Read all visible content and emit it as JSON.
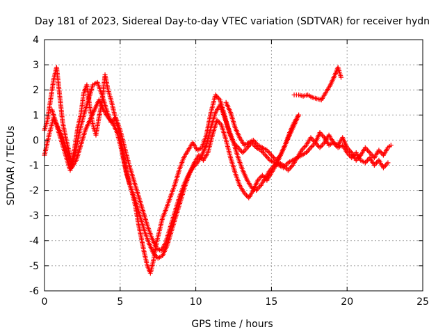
{
  "chart_data": {
    "type": "scatter",
    "title": "Day 181 of 2023, Sidereal Day-to-day VTEC variation (SDTVAR) for receiver hydn",
    "xlabel": "GPS time / hours",
    "ylabel": "SDTVAR / TECUs",
    "xlim": [
      0,
      25
    ],
    "ylim": [
      -6,
      4
    ],
    "x_ticks": [
      0,
      5,
      10,
      15,
      20,
      25
    ],
    "y_ticks": [
      -6,
      -5,
      -4,
      -3,
      -2,
      -1,
      0,
      1,
      2,
      3,
      4
    ],
    "grid": true,
    "marker": "plus",
    "color": "#ff0000",
    "series": [
      {
        "x": [
          0.0,
          0.2,
          0.4,
          0.6,
          0.8,
          1.0,
          1.2,
          1.4,
          1.6,
          1.8,
          2.0,
          2.2,
          2.4,
          2.6,
          2.8,
          3.0,
          3.2,
          3.4,
          3.6,
          3.8,
          4.0,
          4.2,
          4.4,
          4.6,
          4.8,
          5.0,
          5.2,
          5.4,
          5.6,
          5.8,
          6.0,
          6.2,
          6.4,
          6.6,
          6.8,
          7.0,
          7.2,
          7.4,
          7.6,
          7.8,
          8.0,
          8.3,
          8.6,
          8.9,
          9.2,
          9.5,
          9.8,
          10.1,
          10.4,
          10.7,
          11.0,
          11.3,
          11.6,
          11.9,
          12.2,
          12.5,
          12.8,
          13.1,
          13.4,
          13.7,
          14.0,
          14.3,
          14.6,
          14.9,
          15.2,
          15.5,
          15.8,
          16.1,
          16.4,
          16.7,
          17.0,
          17.3,
          17.6,
          17.9,
          18.2,
          18.5,
          18.8,
          19.1,
          19.4,
          19.7,
          20.0,
          20.3,
          20.6,
          20.9,
          21.2,
          21.5,
          21.8,
          22.1,
          22.4,
          22.7,
          22.9
        ],
        "y": [
          0.4,
          0.8,
          1.6,
          2.4,
          2.9,
          1.8,
          0.7,
          0.1,
          -0.4,
          -0.9,
          -0.3,
          0.5,
          1.0,
          1.9,
          2.2,
          1.3,
          0.6,
          0.2,
          0.9,
          1.5,
          2.6,
          2.0,
          1.6,
          1.1,
          0.6,
          0.2,
          -0.6,
          -1.2,
          -1.7,
          -2.1,
          -2.6,
          -3.3,
          -3.9,
          -4.5,
          -5.0,
          -5.3,
          -4.8,
          -4.1,
          -3.6,
          -3.1,
          -2.8,
          -2.3,
          -1.8,
          -1.2,
          -0.7,
          -0.4,
          -0.1,
          -0.4,
          -0.3,
          0.2,
          1.1,
          1.8,
          1.6,
          1.0,
          0.3,
          -0.1,
          -0.3,
          -0.5,
          -0.3,
          -0.1,
          -0.3,
          -0.4,
          -0.6,
          -0.8,
          -0.9,
          -1.0,
          -1.1,
          -0.9,
          -0.8,
          -0.7,
          -0.6,
          -0.5,
          -0.3,
          -0.1,
          0.3,
          0.1,
          -0.2,
          -0.1,
          -0.2,
          0.1,
          -0.3,
          -0.5,
          -0.8,
          -0.6,
          -0.3,
          -0.5,
          -0.7,
          -0.4,
          -0.6,
          -0.3,
          -0.2
        ]
      },
      {
        "x": [
          0.0,
          0.3,
          0.6,
          0.9,
          1.2,
          1.5,
          1.8,
          2.1,
          2.4,
          2.7,
          3.0,
          3.3,
          3.6,
          3.9,
          4.2,
          4.5,
          4.8,
          5.1,
          5.4,
          5.7,
          6.0,
          6.3,
          6.6,
          6.9,
          7.2,
          7.5,
          7.8,
          8.1,
          8.4,
          8.7,
          9.0,
          9.3,
          9.6,
          9.9,
          10.2,
          10.5,
          10.8,
          11.1,
          11.4,
          11.7,
          12.0,
          12.3,
          12.6,
          12.9,
          13.2,
          13.5,
          13.8,
          14.1,
          14.4,
          14.7,
          15.0,
          15.3,
          15.6,
          15.9,
          16.2,
          16.5,
          16.8
        ],
        "y": [
          -0.6,
          0.2,
          0.9,
          0.5,
          0.1,
          -0.5,
          -1.1,
          -0.8,
          -0.2,
          0.4,
          0.8,
          1.2,
          1.6,
          1.2,
          0.9,
          0.7,
          0.3,
          -0.4,
          -1.3,
          -1.9,
          -2.4,
          -3.0,
          -3.6,
          -4.1,
          -4.5,
          -4.7,
          -4.6,
          -4.2,
          -3.6,
          -3.0,
          -2.4,
          -1.8,
          -1.3,
          -0.9,
          -0.6,
          -0.8,
          -0.5,
          0.2,
          0.8,
          0.6,
          0.0,
          -0.7,
          -1.3,
          -1.8,
          -2.1,
          -2.3,
          -2.0,
          -1.6,
          -1.4,
          -1.6,
          -1.3,
          -1.0,
          -0.6,
          -0.2,
          0.3,
          0.7,
          1.0
        ]
      },
      {
        "x": [
          0.5,
          0.8,
          1.1,
          1.4,
          1.7,
          2.0,
          2.3,
          2.6,
          2.9,
          3.2,
          3.5,
          3.8,
          4.1,
          4.4,
          4.7,
          5.0,
          5.3,
          5.6,
          5.9,
          6.2,
          6.5,
          6.8,
          7.1,
          7.4,
          7.7,
          8.0,
          8.3,
          8.6,
          8.9,
          9.2,
          9.5,
          9.8,
          10.1,
          10.4,
          10.7,
          11.0,
          11.3,
          11.6,
          11.9,
          12.2,
          12.5,
          12.8,
          13.1,
          13.4,
          13.7,
          14.0,
          14.3,
          14.6,
          14.9,
          15.2,
          15.5,
          15.8,
          16.1,
          16.4,
          16.7,
          17.0,
          17.3,
          17.6,
          17.9,
          18.2,
          18.5,
          18.8,
          19.1,
          19.4,
          19.7,
          20.0,
          20.3,
          20.6,
          20.9,
          21.2,
          21.5,
          21.8,
          22.1,
          22.4,
          22.7
        ],
        "y": [
          1.2,
          0.6,
          0.0,
          -0.6,
          -1.2,
          -0.6,
          0.3,
          1.0,
          1.6,
          2.2,
          2.3,
          1.8,
          1.2,
          0.7,
          0.9,
          0.4,
          -0.3,
          -1.0,
          -1.6,
          -2.2,
          -2.8,
          -3.4,
          -3.9,
          -4.3,
          -4.4,
          -4.1,
          -3.5,
          -2.9,
          -2.3,
          -1.8,
          -1.4,
          -1.1,
          -0.9,
          -0.6,
          -0.2,
          0.5,
          1.1,
          1.4,
          0.9,
          0.4,
          -0.1,
          -0.7,
          -1.2,
          -1.6,
          -1.9,
          -2.0,
          -1.8,
          -1.5,
          -1.2,
          -1.0,
          -0.9,
          -1.0,
          -1.2,
          -1.0,
          -0.7,
          -0.4,
          -0.2,
          0.1,
          -0.1,
          -0.3,
          -0.1,
          0.2,
          -0.1,
          -0.3,
          -0.2,
          -0.5,
          -0.7,
          -0.5,
          -0.8,
          -0.9,
          -0.7,
          -1.0,
          -0.8,
          -1.1,
          -0.9
        ]
      },
      {
        "x": [
          12.0,
          12.3,
          12.6,
          12.9,
          13.2,
          13.5,
          13.8,
          14.1,
          14.4,
          14.7,
          15.0,
          15.3,
          15.6,
          15.9,
          16.2,
          16.5,
          16.8
        ],
        "y": [
          1.5,
          1.1,
          0.5,
          0.1,
          -0.2,
          -0.1,
          0.0,
          -0.2,
          -0.3,
          -0.4,
          -0.6,
          -0.8,
          -0.6,
          -0.2,
          0.2,
          0.6,
          1.0
        ]
      },
      {
        "x": [
          16.5,
          16.8,
          17.1,
          17.4,
          17.7,
          18.0,
          18.3,
          18.6,
          18.9,
          19.2,
          19.4,
          19.6
        ],
        "y": [
          1.8,
          1.8,
          1.75,
          1.8,
          1.7,
          1.65,
          1.6,
          1.9,
          2.2,
          2.6,
          2.9,
          2.5
        ]
      }
    ]
  }
}
